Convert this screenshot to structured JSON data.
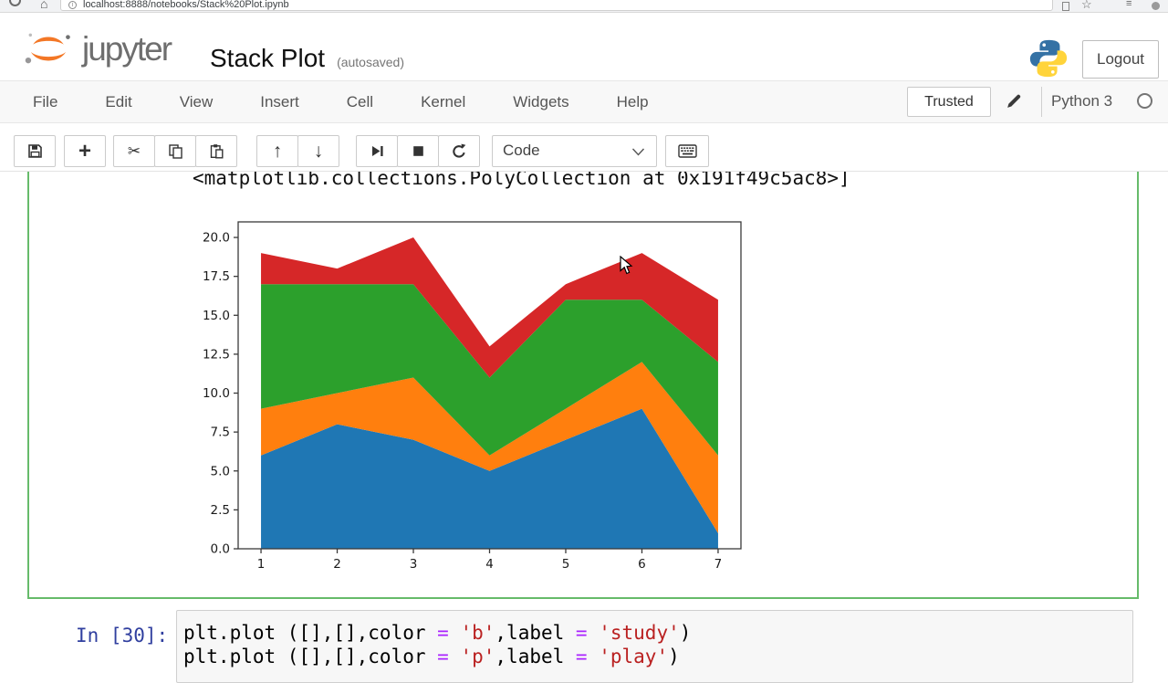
{
  "browser": {
    "url": "localhost:8888/notebooks/Stack%20Plot.ipynb",
    "info_glyph": "i",
    "home_glyph": "⌂",
    "star_glyph": "☆",
    "list_glyph": "≡"
  },
  "header": {
    "logo_text": "jupyter",
    "title": "Stack Plot",
    "autosaved": "(autosaved)",
    "logout_label": "Logout"
  },
  "menubar": {
    "items": [
      "File",
      "Edit",
      "View",
      "Insert",
      "Cell",
      "Kernel",
      "Widgets",
      "Help"
    ],
    "trusted_label": "Trusted",
    "kernel_name": "Python 3"
  },
  "toolbar": {
    "cell_type": "Code",
    "add_glyph": "+",
    "cut_glyph": "✂",
    "up_glyph": "↑",
    "down_glyph": "↓"
  },
  "output_cell": {
    "output_text": "<matplotlib.collections.PolyCollection at 0x191f49c5ac8>]"
  },
  "code_cell": {
    "prompt": "In [30]:",
    "lines": [
      [
        {
          "text": "plt.plot ([],[],color ",
          "type": "code"
        },
        {
          "text": "=",
          "type": "op"
        },
        {
          "text": " ",
          "type": "code"
        },
        {
          "text": "'b'",
          "type": "str"
        },
        {
          "text": ",label ",
          "type": "code"
        },
        {
          "text": "=",
          "type": "op"
        },
        {
          "text": " ",
          "type": "code"
        },
        {
          "text": "'study'",
          "type": "str"
        },
        {
          "text": ")",
          "type": "code"
        }
      ],
      [
        {
          "text": "plt.plot ([],[],color ",
          "type": "code"
        },
        {
          "text": "=",
          "type": "op"
        },
        {
          "text": " ",
          "type": "code"
        },
        {
          "text": "'p'",
          "type": "str"
        },
        {
          "text": ",label ",
          "type": "code"
        },
        {
          "text": "=",
          "type": "op"
        },
        {
          "text": " ",
          "type": "code"
        },
        {
          "text": "'play'",
          "type": "str"
        },
        {
          "text": ")",
          "type": "code"
        }
      ]
    ]
  },
  "chart_data": {
    "type": "area",
    "stacked": true,
    "x": [
      1,
      2,
      3,
      4,
      5,
      6,
      7
    ],
    "series": [
      {
        "name": "blue",
        "color": "#1f77b4",
        "values": [
          6,
          8,
          7,
          5,
          7,
          9,
          1
        ]
      },
      {
        "name": "orange",
        "color": "#ff7f0e",
        "values": [
          3,
          2,
          4,
          1,
          2,
          3,
          5
        ]
      },
      {
        "name": "green",
        "color": "#2ca02c",
        "values": [
          8,
          7,
          6,
          5,
          7,
          4,
          6
        ]
      },
      {
        "name": "red",
        "color": "#d62728",
        "values": [
          2,
          1,
          3,
          2,
          1,
          3,
          4
        ]
      }
    ],
    "title": "",
    "xlabel": "",
    "ylabel": "",
    "xlim": [
      0.7,
      7.3
    ],
    "ylim": [
      0,
      21
    ],
    "xticks": [
      "1",
      "2",
      "3",
      "4",
      "5",
      "6",
      "7"
    ],
    "yticks": [
      "0.0",
      "2.5",
      "5.0",
      "7.5",
      "10.0",
      "12.5",
      "15.0",
      "17.5",
      "20.0"
    ],
    "grid": false,
    "legend": "none",
    "spine_color": "#3a3a3a",
    "tick_label_color": "#1a1a1a"
  }
}
